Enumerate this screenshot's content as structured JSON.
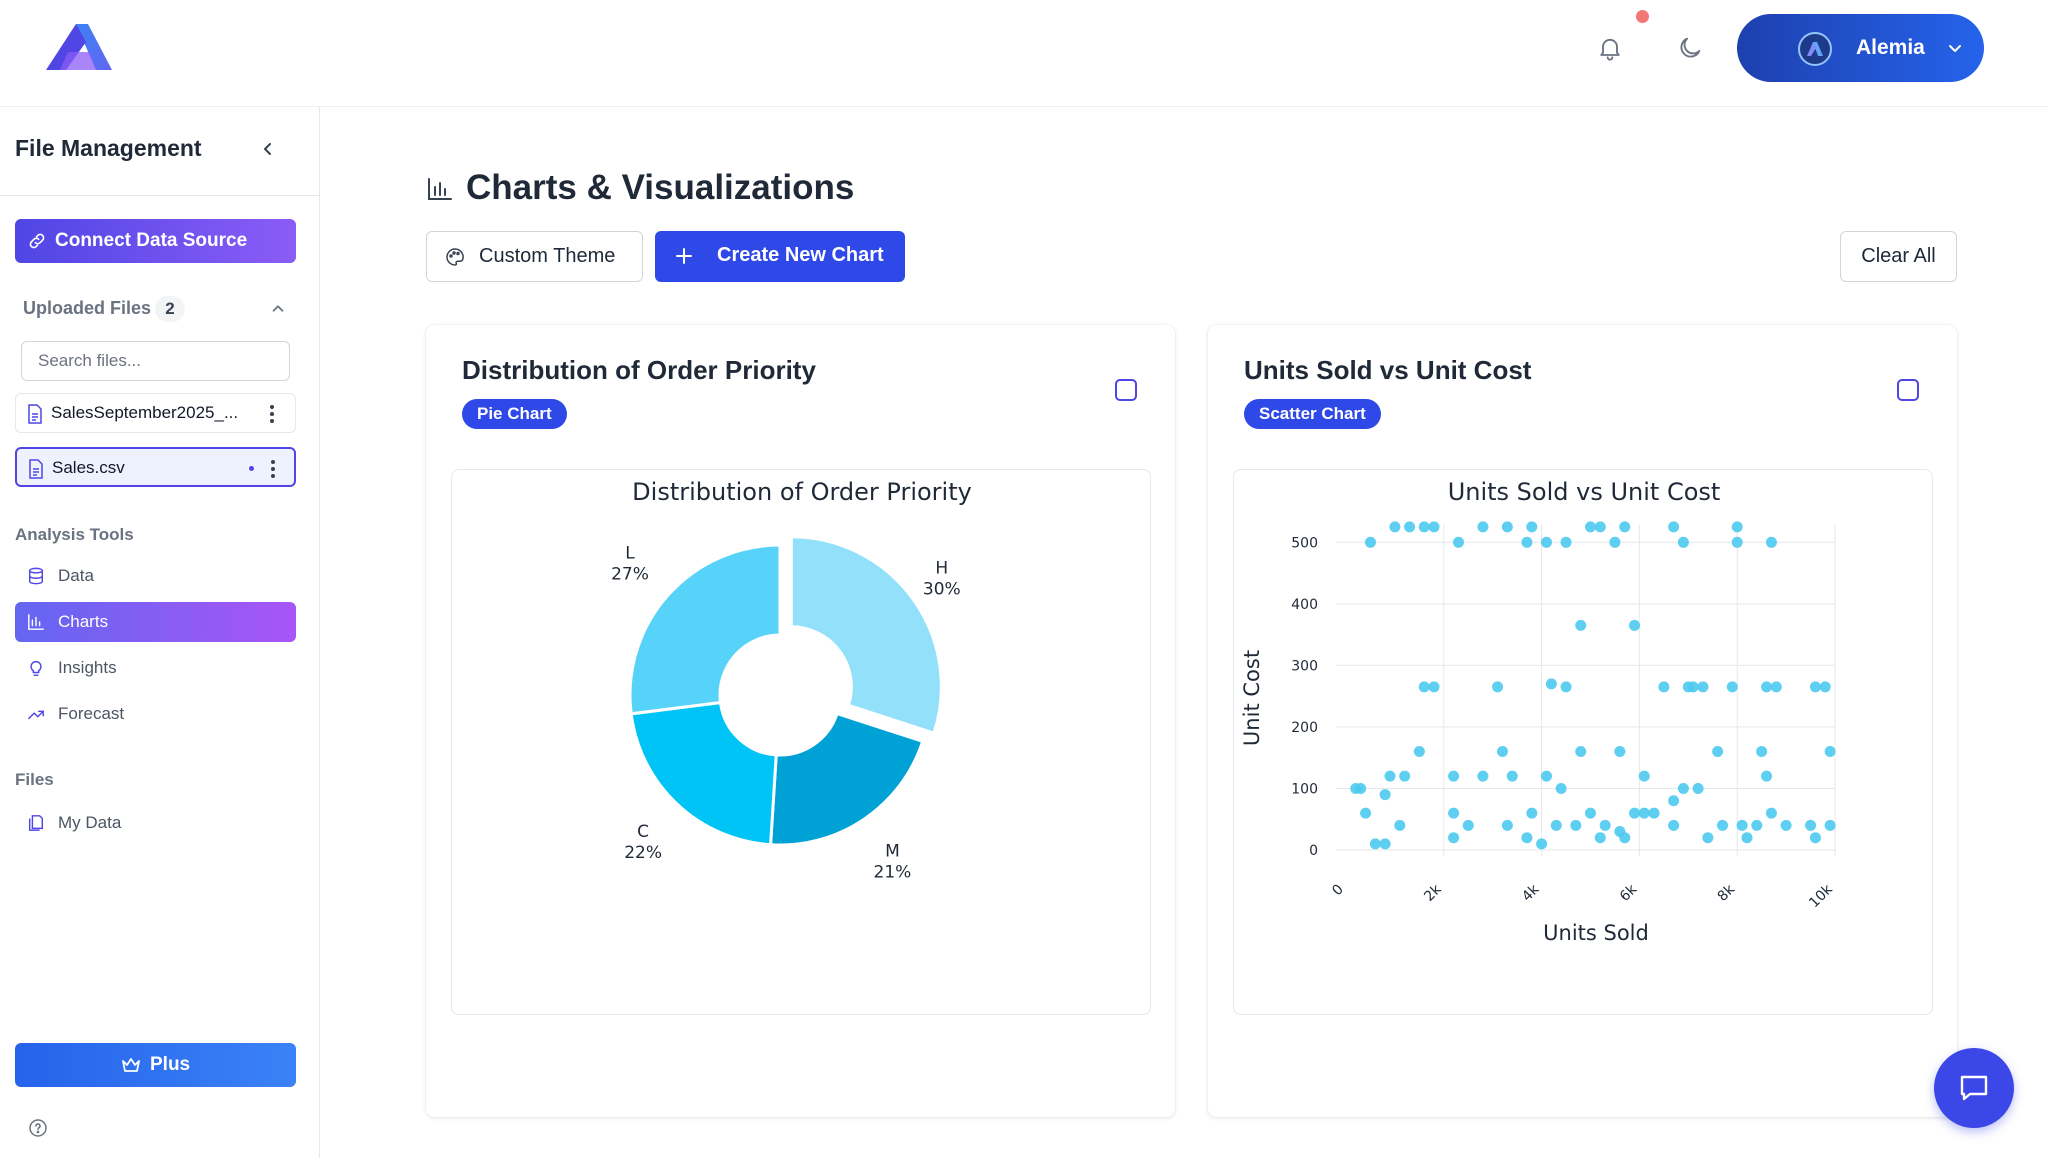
{
  "header": {
    "user_name": "Alemia",
    "icons": [
      "logo",
      "bell-icon",
      "moon-icon",
      "avatar",
      "chevron-down-icon"
    ],
    "notification_dot_color": "#f27878",
    "accent_color": "#2f48e8"
  },
  "sidebar": {
    "title": "File Management",
    "connect_label": "Connect Data Source",
    "uploaded_label": "Uploaded Files",
    "uploaded_count": "2",
    "search_placeholder": "Search files...",
    "files": [
      {
        "name": "SalesSeptember2025_..."
      },
      {
        "name": "Sales.csv",
        "active": true
      }
    ],
    "analysis_label": "Analysis Tools",
    "nav": [
      {
        "label": "Data",
        "icon": "database-icon"
      },
      {
        "label": "Charts",
        "icon": "bar-chart-icon",
        "active": true
      },
      {
        "label": "Insights",
        "icon": "lightbulb-icon"
      },
      {
        "label": "Forecast",
        "icon": "trending-up-icon"
      }
    ],
    "files_label": "Files",
    "my_data_label": "My Data",
    "plus_label": "Plus"
  },
  "main": {
    "title": "Charts & Visualizations",
    "custom_theme_label": "Custom Theme",
    "create_chart_label": "Create New Chart",
    "clear_all_label": "Clear All"
  },
  "cards": [
    {
      "title": "Distribution of Order Priority",
      "badge": "Pie Chart"
    },
    {
      "title": "Units Sold vs Unit Cost",
      "badge": "Scatter Chart"
    }
  ],
  "chart_data": [
    {
      "type": "pie",
      "donut": true,
      "title": "Distribution of Order Priority",
      "labels": [
        "H",
        "M",
        "C",
        "L"
      ],
      "values": [
        30,
        21,
        22,
        27
      ],
      "value_labels": [
        "30%",
        "21%",
        "22%",
        "27%"
      ],
      "colors": [
        "#93e0fa",
        "#00a2d6",
        "#00c4f5",
        "#57d3f9"
      ],
      "pulled": "H"
    },
    {
      "type": "scatter",
      "title": "Units Sold vs Unit Cost",
      "xlabel": "Units Sold",
      "ylabel": "Unit Cost",
      "xticks": [
        "0",
        "2k",
        "4k",
        "6k",
        "8k",
        "10k"
      ],
      "yticks": [
        "0",
        "100",
        "200",
        "300",
        "400",
        "500"
      ],
      "xlim": [
        0,
        10000
      ],
      "ylim": [
        0,
        520
      ],
      "grid": true,
      "color": "#4cc9f0",
      "points": [
        [
          200,
          100
        ],
        [
          400,
          60
        ],
        [
          600,
          10
        ],
        [
          800,
          10
        ],
        [
          500,
          500
        ],
        [
          1000,
          525
        ],
        [
          1300,
          525
        ],
        [
          1600,
          525
        ],
        [
          1800,
          525
        ],
        [
          2300,
          500
        ],
        [
          2800,
          525
        ],
        [
          3300,
          525
        ],
        [
          3700,
          500
        ],
        [
          3800,
          525
        ],
        [
          4100,
          500
        ],
        [
          4500,
          500
        ],
        [
          5000,
          525
        ],
        [
          5200,
          525
        ],
        [
          5500,
          500
        ],
        [
          5700,
          525
        ],
        [
          6700,
          525
        ],
        [
          6900,
          500
        ],
        [
          8000,
          525
        ],
        [
          8000,
          500
        ],
        [
          8700,
          500
        ],
        [
          1600,
          265
        ],
        [
          1800,
          265
        ],
        [
          3100,
          265
        ],
        [
          4500,
          265
        ],
        [
          4200,
          270
        ],
        [
          6500,
          265
        ],
        [
          7000,
          265
        ],
        [
          7100,
          265
        ],
        [
          7300,
          265
        ],
        [
          7900,
          265
        ],
        [
          8600,
          265
        ],
        [
          8800,
          265
        ],
        [
          9600,
          265
        ],
        [
          9800,
          265
        ],
        [
          4800,
          365
        ],
        [
          5900,
          365
        ],
        [
          1500,
          160
        ],
        [
          3200,
          160
        ],
        [
          4800,
          160
        ],
        [
          5600,
          160
        ],
        [
          7600,
          160
        ],
        [
          8500,
          160
        ],
        [
          9900,
          160
        ],
        [
          900,
          120
        ],
        [
          1200,
          120
        ],
        [
          2200,
          120
        ],
        [
          2800,
          120
        ],
        [
          3400,
          120
        ],
        [
          4100,
          120
        ],
        [
          6100,
          120
        ],
        [
          8600,
          120
        ],
        [
          300,
          100
        ],
        [
          800,
          90
        ],
        [
          2200,
          60
        ],
        [
          2500,
          40
        ],
        [
          3300,
          40
        ],
        [
          3700,
          20
        ],
        [
          4300,
          40
        ],
        [
          4700,
          40
        ],
        [
          5000,
          60
        ],
        [
          5300,
          40
        ],
        [
          5600,
          30
        ],
        [
          5900,
          60
        ],
        [
          6300,
          60
        ],
        [
          6700,
          40
        ],
        [
          6900,
          100
        ],
        [
          7700,
          40
        ],
        [
          8100,
          40
        ],
        [
          8400,
          40
        ],
        [
          9000,
          40
        ],
        [
          9500,
          40
        ],
        [
          9900,
          40
        ],
        [
          1100,
          40
        ],
        [
          2200,
          20
        ],
        [
          3800,
          60
        ],
        [
          5200,
          20
        ],
        [
          5700,
          20
        ],
        [
          6100,
          60
        ],
        [
          7200,
          100
        ],
        [
          7400,
          20
        ],
        [
          8200,
          20
        ],
        [
          8700,
          60
        ],
        [
          9600,
          20
        ],
        [
          4400,
          100
        ],
        [
          6700,
          80
        ],
        [
          4000,
          10
        ]
      ]
    }
  ]
}
